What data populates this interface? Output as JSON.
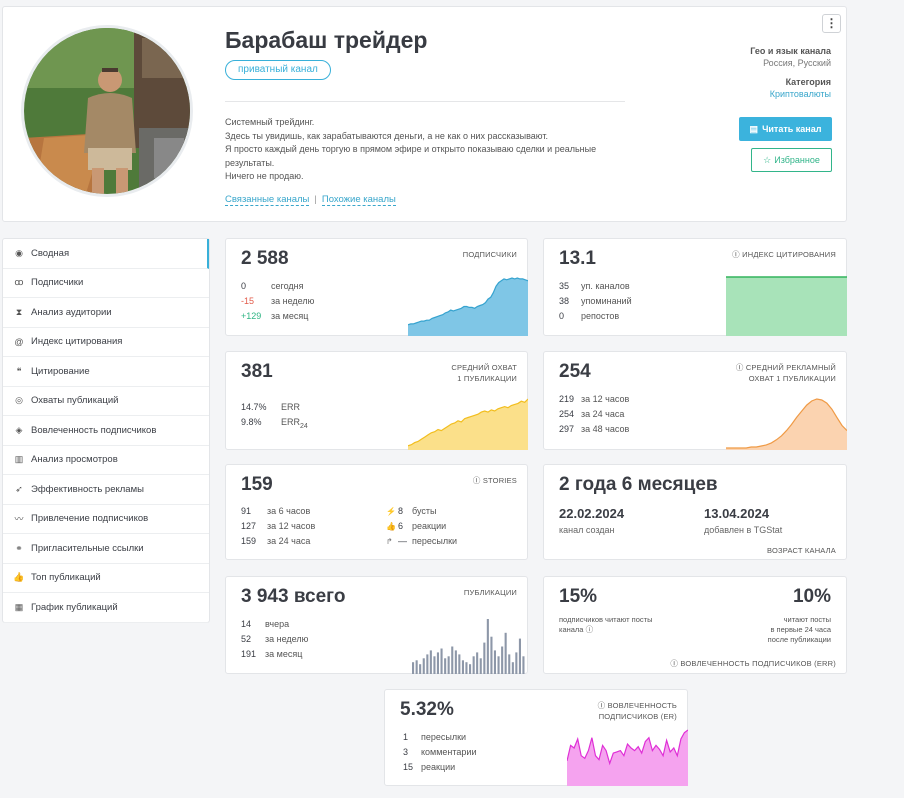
{
  "channel": {
    "title": "Барабаш трейдер",
    "badge": "приватный канал",
    "description": [
      "Системный трейдинг.",
      "Здесь ты увидишь, как зарабатываются деньги, а не как о них рассказывают.",
      "Я просто каждый день торгую в прямом эфире и открыто показываю сделки и реальные",
      "результаты.",
      "Ничего не продаю."
    ],
    "link_related": "Связанные каналы",
    "link_separator": "|",
    "link_similar": "Похожие каналы",
    "geo_label": "Гео и язык канала",
    "geo_value": "Россия, Русский",
    "category_label": "Категория",
    "category_value": "Криптовалюты",
    "read_button": "Читать канал",
    "fav_button": "Избранное",
    "menu_icon": "⋮"
  },
  "sidebar": {
    "items": [
      {
        "icon": "dashboard-icon",
        "glyph": "◉",
        "label": "Сводная",
        "active": true
      },
      {
        "icon": "users-icon",
        "glyph": "ꝏ",
        "label": "Подписчики"
      },
      {
        "icon": "hourglass-icon",
        "glyph": "⧗",
        "label": "Анализ аудитории"
      },
      {
        "icon": "at-icon",
        "glyph": "@",
        "label": "Индекс цитирования"
      },
      {
        "icon": "quote-icon",
        "glyph": "❝",
        "label": "Цитирование"
      },
      {
        "icon": "eye-icon",
        "glyph": "◎",
        "label": "Охваты публикаций"
      },
      {
        "icon": "engagement-icon",
        "glyph": "◈",
        "label": "Вовлеченность подписчиков"
      },
      {
        "icon": "bar-chart-icon",
        "glyph": "▥",
        "label": "Анализ просмотров"
      },
      {
        "icon": "rocket-icon",
        "glyph": "➶",
        "label": "Эффективность рекламы"
      },
      {
        "icon": "trend-icon",
        "glyph": "〰",
        "label": "Привлечение подписчиков"
      },
      {
        "icon": "link-icon",
        "glyph": "⚭",
        "label": "Пригласительные ссылки"
      },
      {
        "icon": "thumb-icon",
        "glyph": "👍",
        "label": "Топ публикаций"
      },
      {
        "icon": "calendar-icon",
        "glyph": "▦",
        "label": "График публикаций"
      }
    ]
  },
  "subscribers": {
    "value": "2 588",
    "label": "ПОДПИСЧИКИ",
    "rows": [
      {
        "n": "0",
        "t": "сегодня",
        "kind": ""
      },
      {
        "n": "-15",
        "t": "за неделю",
        "kind": "neg"
      },
      {
        "n": "+129",
        "t": "за месяц",
        "kind": "pos"
      }
    ],
    "color": "#7fc6e6",
    "line": "#36a3cf",
    "series": [
      10,
      11,
      11,
      12,
      13,
      14,
      14,
      15,
      15,
      17,
      18,
      19,
      20,
      21,
      23,
      24,
      26,
      25,
      26,
      27,
      28,
      30,
      30,
      29,
      29,
      28,
      30,
      31,
      32,
      34,
      38,
      40,
      45,
      52,
      56,
      58,
      60,
      59,
      60,
      61,
      60,
      61,
      60,
      60,
      59,
      58
    ]
  },
  "citation": {
    "value": "13.1",
    "label": "ИНДЕКС ЦИТИРОВАНИЯ",
    "rows": [
      {
        "n": "35",
        "t": "уп. каналов"
      },
      {
        "n": "38",
        "t": "упоминаний"
      },
      {
        "n": "0",
        "t": "репостов"
      }
    ],
    "color": "#a8e3b9",
    "line": "#33b45d"
  },
  "reach": {
    "value": "381",
    "label": [
      "СРЕДНИЙ ОХВАТ",
      "1 ПУБЛИКАЦИИ"
    ],
    "rows": [
      {
        "n": "14.7%",
        "t": "ERR"
      },
      {
        "n": "9.8%",
        "t": "ERR",
        "sub": "24"
      }
    ],
    "color": "#fbe08a",
    "line": "#f2be1e",
    "series": [
      2,
      3,
      5,
      6,
      8,
      10,
      12,
      14,
      15,
      17,
      16,
      18,
      20,
      22,
      23,
      25,
      24,
      27,
      28,
      29,
      30,
      31,
      33,
      34,
      33,
      35,
      34,
      36,
      37,
      38,
      37,
      39,
      40,
      41,
      43,
      42,
      45
    ]
  },
  "ad_reach": {
    "value": "254",
    "label": [
      "СРЕДНИЙ РЕКЛАМНЫЙ",
      "ОХВАТ 1 ПУБЛИКАЦИИ"
    ],
    "rows": [
      {
        "n": "219",
        "t": "за 12 часов"
      },
      {
        "n": "254",
        "t": "за 24 часа"
      },
      {
        "n": "297",
        "t": "за 48 часов"
      }
    ],
    "color": "#fbd3b0",
    "line": "#ef9a45",
    "series": [
      0,
      0,
      0,
      0,
      0,
      1,
      1,
      2,
      3,
      5,
      8,
      12,
      17,
      23,
      30,
      36,
      42,
      46,
      48,
      47,
      44,
      38,
      30,
      22,
      17
    ]
  },
  "stories": {
    "value": "159",
    "label": "STORIES",
    "rows": [
      {
        "n": "91",
        "t": "за 6 часов"
      },
      {
        "n": "127",
        "t": "за 12 часов"
      },
      {
        "n": "159",
        "t": "за 24 часа"
      }
    ],
    "rows2": [
      {
        "icon": "boost-icon",
        "g": "⚡",
        "n": "8",
        "t": "бусты"
      },
      {
        "icon": "reaction-icon",
        "g": "👍",
        "n": "6",
        "t": "реакции"
      },
      {
        "icon": "forward-icon",
        "g": "↱",
        "n": "—",
        "t": "пересылки"
      }
    ]
  },
  "age": {
    "value": "2 года 6 месяцев",
    "created": "22.02.2024",
    "created_label": "канал создан",
    "added": "13.04.2024",
    "added_label": "добавлен в TGStat",
    "label": "ВОЗРАСТ КАНАЛА"
  },
  "posts": {
    "value": "3 943 всего",
    "label": "ПУБЛИКАЦИИ",
    "rows": [
      {
        "n": "14",
        "t": "вчера"
      },
      {
        "n": "52",
        "t": "за неделю"
      },
      {
        "n": "191",
        "t": "за месяц"
      }
    ],
    "color": "#8d97a8",
    "bars": [
      6,
      7,
      5,
      8,
      10,
      12,
      9,
      11,
      13,
      8,
      9,
      14,
      12,
      10,
      7,
      6,
      5,
      9,
      11,
      8,
      16,
      28,
      19,
      12,
      9,
      14,
      21,
      10,
      6,
      11,
      18,
      9
    ]
  },
  "err_card": {
    "left_value": "15%",
    "left_text": [
      "подписчиков читают посты",
      "канала"
    ],
    "right_value": "10%",
    "right_text": [
      "читают посты",
      "в первые 24 часа",
      "после публикации"
    ],
    "label": "ВОВЛЕЧЕННОСТЬ ПОДПИСЧИКОВ (ERR)"
  },
  "er_card": {
    "value": "5.32%",
    "label": [
      "ВОВЛЕЧЕННОСТЬ",
      "ПОДПИСЧИКОВ (ER)"
    ],
    "rows": [
      {
        "n": "1",
        "t": "пересылки"
      },
      {
        "n": "3",
        "t": "комментарии"
      },
      {
        "n": "15",
        "t": "реакции"
      }
    ],
    "color": "#f5a3ef",
    "line": "#df2fd6",
    "series": [
      18,
      30,
      28,
      35,
      22,
      20,
      26,
      36,
      22,
      19,
      30,
      26,
      16,
      24,
      25,
      26,
      22,
      31,
      28,
      26,
      29,
      24,
      33,
      36,
      26,
      30,
      27,
      22,
      34,
      25,
      28,
      22,
      35,
      40,
      42
    ]
  },
  "info_icon": "ⓘ"
}
